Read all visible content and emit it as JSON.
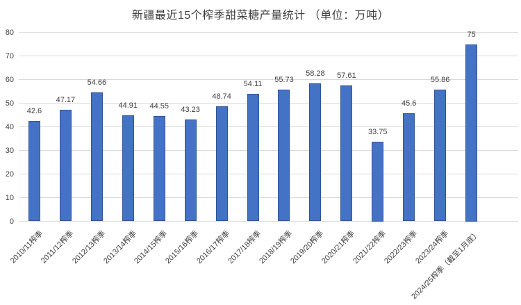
{
  "chart_data": {
    "type": "bar",
    "title": "新疆最近15个榨季甜菜糖产量统计 （单位：万吨）",
    "categories": [
      "2010/11榨季",
      "2011/12榨季",
      "2012/13榨季",
      "2013/14榨季",
      "2014/15榨季",
      "2015/16榨季",
      "2016/17榨季",
      "2017/18榨季",
      "2018/19榨季",
      "2019/20榨季",
      "2020/21榨季",
      "2021/22榨季",
      "2022/23榨季",
      "2023/24榨季",
      "2024/25榨季（截至1月底）"
    ],
    "values": [
      42.6,
      47.17,
      54.66,
      44.91,
      44.55,
      43.23,
      48.74,
      54.11,
      55.73,
      58.28,
      57.61,
      33.75,
      45.6,
      55.86,
      75
    ],
    "value_labels": [
      "42.6",
      "47.17",
      "54.66",
      "44.91",
      "44.55",
      "43.23",
      "48.74",
      "54.11",
      "55.73",
      "58.28",
      "57.61",
      "33.75",
      "45.6",
      "55.86",
      "75"
    ],
    "yticks": [
      0,
      10,
      20,
      30,
      40,
      50,
      60,
      70,
      80
    ],
    "ylim": [
      0,
      80
    ],
    "xlabel": "",
    "ylabel": "",
    "grid": true,
    "legend": "none",
    "bar_color": "#4472C4",
    "bar_border_color": "#2F5597",
    "gridline_color": "#D9D9D9",
    "text_color": "#404040"
  }
}
